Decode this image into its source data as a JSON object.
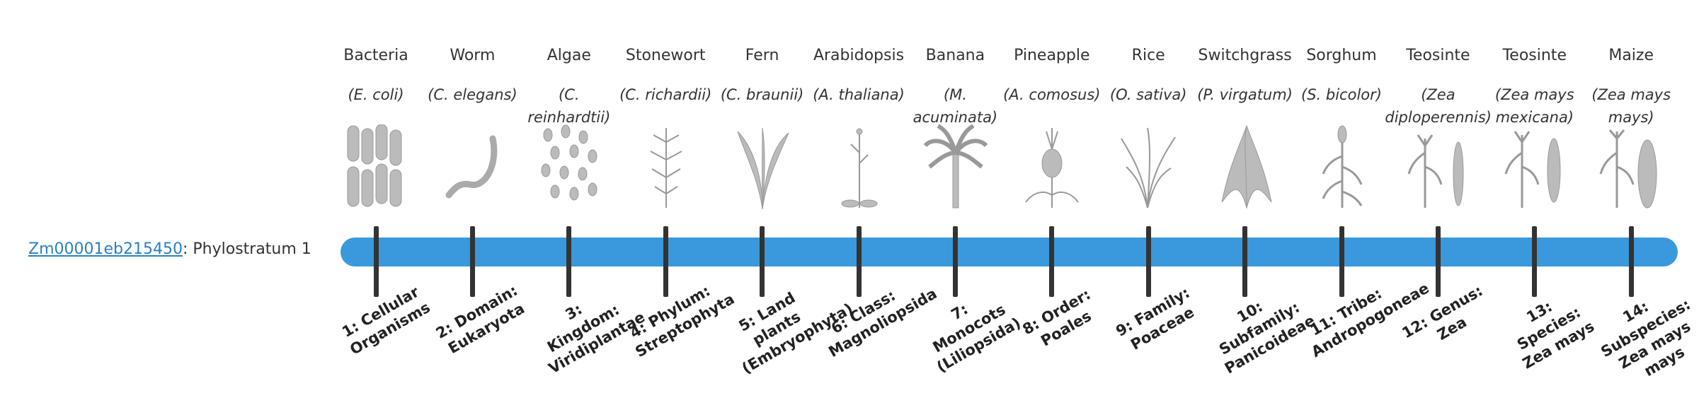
{
  "gene": {
    "id": "Zm00001eb215450",
    "suffix": ": Phylostratum 1"
  },
  "organisms": [
    {
      "name": "Bacteria",
      "species": "(E. coli)",
      "stratum": "1: Cellular Organisms"
    },
    {
      "name": "Worm",
      "species": "(C. elegans)",
      "stratum": "2: Domain: Eukaryota"
    },
    {
      "name": "Algae",
      "species": "(C. reinhardtii)",
      "stratum": "3: Kingdom: Viridiplantae"
    },
    {
      "name": "Stonewort",
      "species": "(C. richardii)",
      "stratum": "4: Phylum: Streptophyta"
    },
    {
      "name": "Fern",
      "species": "(C. braunii)",
      "stratum": "5: Land plants (Embryophyta)"
    },
    {
      "name": "Arabidopsis",
      "species": "(A. thaliana)",
      "stratum": "6: Class: Magnoliopsida"
    },
    {
      "name": "Banana",
      "species": "(M. acuminata)",
      "stratum": "7: Monocots (Liliopsida)"
    },
    {
      "name": "Pineapple",
      "species": "(A. comosus)",
      "stratum": "8: Order: Poales"
    },
    {
      "name": "Rice",
      "species": "(O. sativa)",
      "stratum": "9: Family: Poaceae"
    },
    {
      "name": "Switchgrass",
      "species": "(P. virgatum)",
      "stratum": "10: Subfamily: Panicoideae"
    },
    {
      "name": "Sorghum",
      "species": "(S. bicolor)",
      "stratum": "11: Tribe: Andropogoneae"
    },
    {
      "name": "Teosinte",
      "species": "(Zea diploperennis)",
      "stratum": "12: Genus: Zea"
    },
    {
      "name": "Teosinte",
      "species": "(Zea mays mexicana)",
      "stratum": "13: Species: Zea mays"
    },
    {
      "name": "Maize",
      "species": "(Zea mays mays)",
      "stratum": "14: Subspecies: Zea mays mays"
    }
  ]
}
